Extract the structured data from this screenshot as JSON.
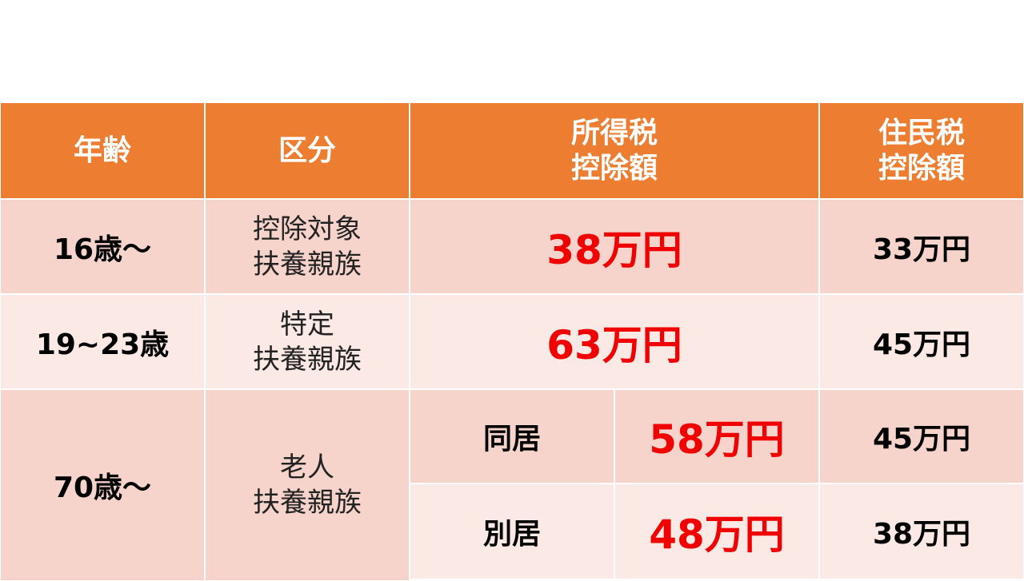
{
  "colors": {
    "header": "#ED7D31",
    "row_dark": "#F7D4CB",
    "row_light": "#FBE9E5",
    "highlight": "#F00000"
  },
  "header": {
    "age": "年齢",
    "category": "区分",
    "income_tax": "所得税\n控除額",
    "resident_tax": "住民税\n控除額"
  },
  "rows": [
    {
      "age": "16歳〜",
      "category": "控除対象\n扶養親族",
      "income_tax": "38万円",
      "resident_tax": "33万円"
    },
    {
      "age": "19~23歳",
      "category": "特定\n扶養親族",
      "income_tax": "63万円",
      "resident_tax": "45万円"
    },
    {
      "age": "70歳〜",
      "category": "老人\n扶養親族",
      "sub": [
        {
          "label": "同居",
          "income_tax": "58万円",
          "resident_tax": "45万円"
        },
        {
          "label": "別居",
          "income_tax": "48万円",
          "resident_tax": "38万円"
        }
      ]
    }
  ]
}
